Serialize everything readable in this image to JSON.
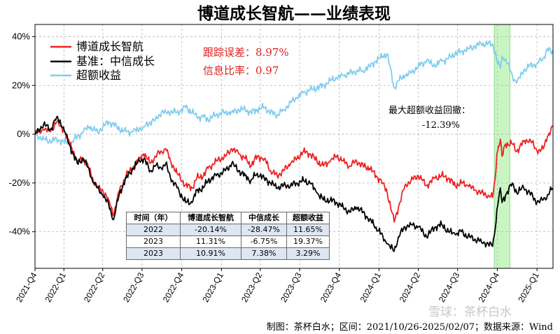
{
  "chart_data": {
    "type": "line",
    "title": "博道成长智航——业绩表现",
    "x_range": [
      "2021-10-26",
      "2025-02-07"
    ],
    "ylim": [
      -55,
      45
    ],
    "y_ticks": [
      "40%",
      "20%",
      "0%",
      "-20%",
      "-40%"
    ],
    "x_ticks": [
      "2021-Q4",
      "2022-Q1",
      "2022-Q2",
      "2022-Q3",
      "2022-Q4",
      "2023-Q1",
      "2023-Q2",
      "2023-Q3",
      "2023-Q4",
      "2024-Q1",
      "2024-Q2",
      "2024-Q3",
      "2024-Q4",
      "2025-Q1"
    ],
    "grid": true,
    "legend_position": "top-left",
    "series": [
      {
        "name": "博道成长智航",
        "color": "#ee2222",
        "points": [
          [
            "2021-10-26",
            0
          ],
          [
            "2021-11-15",
            2
          ],
          [
            "2021-12-01",
            1
          ],
          [
            "2021-12-15",
            5
          ],
          [
            "2021-12-31",
            2
          ],
          [
            "2022-01-10",
            -2
          ],
          [
            "2022-01-20",
            -6
          ],
          [
            "2022-02-01",
            -11
          ],
          [
            "2022-02-15",
            -10
          ],
          [
            "2022-03-01",
            -14
          ],
          [
            "2022-03-10",
            -19
          ],
          [
            "2022-03-20",
            -22
          ],
          [
            "2022-04-01",
            -23
          ],
          [
            "2022-04-15",
            -27
          ],
          [
            "2022-04-26",
            -33
          ],
          [
            "2022-05-10",
            -23
          ],
          [
            "2022-05-25",
            -17
          ],
          [
            "2022-06-10",
            -14
          ],
          [
            "2022-06-25",
            -10
          ],
          [
            "2022-07-05",
            -8
          ],
          [
            "2022-07-20",
            -12
          ],
          [
            "2022-08-01",
            -9
          ],
          [
            "2022-08-15",
            -7
          ],
          [
            "2022-08-25",
            -6
          ],
          [
            "2022-09-05",
            -11
          ],
          [
            "2022-09-20",
            -16
          ],
          [
            "2022-10-10",
            -21
          ],
          [
            "2022-10-25",
            -22
          ],
          [
            "2022-11-05",
            -18
          ],
          [
            "2022-11-20",
            -17
          ],
          [
            "2022-12-01",
            -14
          ],
          [
            "2022-12-20",
            -11
          ],
          [
            "2023-01-10",
            -9
          ],
          [
            "2023-01-25",
            -6
          ],
          [
            "2023-02-10",
            -8
          ],
          [
            "2023-02-25",
            -10
          ],
          [
            "2023-03-10",
            -13
          ],
          [
            "2023-03-25",
            -9
          ],
          [
            "2023-04-10",
            -10
          ],
          [
            "2023-04-25",
            -15
          ],
          [
            "2023-05-10",
            -17
          ],
          [
            "2023-05-25",
            -15
          ],
          [
            "2023-06-10",
            -12
          ],
          [
            "2023-06-25",
            -10
          ],
          [
            "2023-07-10",
            -7
          ],
          [
            "2023-07-25",
            -8
          ],
          [
            "2023-08-10",
            -11
          ],
          [
            "2023-08-25",
            -13
          ],
          [
            "2023-09-10",
            -11
          ],
          [
            "2023-09-25",
            -9
          ],
          [
            "2023-10-10",
            -11
          ],
          [
            "2023-10-25",
            -13
          ],
          [
            "2023-11-10",
            -11
          ],
          [
            "2023-11-25",
            -13
          ],
          [
            "2023-12-10",
            -14
          ],
          [
            "2023-12-25",
            -17
          ],
          [
            "2024-01-10",
            -20
          ],
          [
            "2024-01-20",
            -24
          ],
          [
            "2024-02-05",
            -36
          ],
          [
            "2024-02-15",
            -30
          ],
          [
            "2024-03-01",
            -21
          ],
          [
            "2024-03-15",
            -19
          ],
          [
            "2024-04-01",
            -17
          ],
          [
            "2024-04-20",
            -21
          ],
          [
            "2024-05-10",
            -18
          ],
          [
            "2024-05-25",
            -17
          ],
          [
            "2024-06-10",
            -18
          ],
          [
            "2024-06-25",
            -21
          ],
          [
            "2024-07-10",
            -20
          ],
          [
            "2024-07-25",
            -21
          ],
          [
            "2024-08-10",
            -23
          ],
          [
            "2024-08-25",
            -24
          ],
          [
            "2024-09-10",
            -25
          ],
          [
            "2024-09-20",
            -26
          ],
          [
            "2024-09-26",
            -18
          ],
          [
            "2024-09-30",
            -8
          ],
          [
            "2024-10-08",
            -2
          ],
          [
            "2024-10-12",
            -9
          ],
          [
            "2024-10-20",
            -4
          ],
          [
            "2024-11-05",
            -4
          ],
          [
            "2024-11-15",
            -7
          ],
          [
            "2024-12-01",
            -3
          ],
          [
            "2024-12-15",
            -2
          ],
          [
            "2025-01-01",
            -7
          ],
          [
            "2025-01-15",
            -6
          ],
          [
            "2025-01-25",
            -1
          ],
          [
            "2025-02-07",
            3
          ]
        ]
      },
      {
        "name": "基准：中信成长",
        "color": "#000000",
        "points": [
          [
            "2021-10-26",
            0
          ],
          [
            "2021-11-15",
            4
          ],
          [
            "2021-12-01",
            2
          ],
          [
            "2021-12-15",
            7
          ],
          [
            "2021-12-31",
            3
          ],
          [
            "2022-01-10",
            -3
          ],
          [
            "2022-01-20",
            -7
          ],
          [
            "2022-02-01",
            -12
          ],
          [
            "2022-02-15",
            -10
          ],
          [
            "2022-03-01",
            -15
          ],
          [
            "2022-03-10",
            -20
          ],
          [
            "2022-03-20",
            -22
          ],
          [
            "2022-04-01",
            -25
          ],
          [
            "2022-04-15",
            -29
          ],
          [
            "2022-04-26",
            -35
          ],
          [
            "2022-05-10",
            -24
          ],
          [
            "2022-05-25",
            -18
          ],
          [
            "2022-06-10",
            -14
          ],
          [
            "2022-06-25",
            -11
          ],
          [
            "2022-07-05",
            -10
          ],
          [
            "2022-07-20",
            -15
          ],
          [
            "2022-08-01",
            -13
          ],
          [
            "2022-08-15",
            -14
          ],
          [
            "2022-08-25",
            -12
          ],
          [
            "2022-09-05",
            -18
          ],
          [
            "2022-09-20",
            -22
          ],
          [
            "2022-10-10",
            -28
          ],
          [
            "2022-10-25",
            -28
          ],
          [
            "2022-11-05",
            -23
          ],
          [
            "2022-11-20",
            -22
          ],
          [
            "2022-12-01",
            -19
          ],
          [
            "2022-12-20",
            -17
          ],
          [
            "2023-01-10",
            -15
          ],
          [
            "2023-01-25",
            -12
          ],
          [
            "2023-02-10",
            -15
          ],
          [
            "2023-02-25",
            -17
          ],
          [
            "2023-03-10",
            -19
          ],
          [
            "2023-03-25",
            -16
          ],
          [
            "2023-04-10",
            -18
          ],
          [
            "2023-04-25",
            -20
          ],
          [
            "2023-05-10",
            -22
          ],
          [
            "2023-05-25",
            -21
          ],
          [
            "2023-06-10",
            -21
          ],
          [
            "2023-06-25",
            -20
          ],
          [
            "2023-07-10",
            -19
          ],
          [
            "2023-07-25",
            -20
          ],
          [
            "2023-08-10",
            -24
          ],
          [
            "2023-08-25",
            -27
          ],
          [
            "2023-09-10",
            -27
          ],
          [
            "2023-09-25",
            -28
          ],
          [
            "2023-10-10",
            -30
          ],
          [
            "2023-10-25",
            -32
          ],
          [
            "2023-11-10",
            -30
          ],
          [
            "2023-11-25",
            -32
          ],
          [
            "2023-12-10",
            -35
          ],
          [
            "2023-12-25",
            -38
          ],
          [
            "2024-01-10",
            -42
          ],
          [
            "2024-01-20",
            -45
          ],
          [
            "2024-02-05",
            -48
          ],
          [
            "2024-02-15",
            -42
          ],
          [
            "2024-03-01",
            -38
          ],
          [
            "2024-03-15",
            -37
          ],
          [
            "2024-04-01",
            -38
          ],
          [
            "2024-04-20",
            -42
          ],
          [
            "2024-05-10",
            -38
          ],
          [
            "2024-05-25",
            -37
          ],
          [
            "2024-06-10",
            -40
          ],
          [
            "2024-06-25",
            -41
          ],
          [
            "2024-07-10",
            -40
          ],
          [
            "2024-07-25",
            -42
          ],
          [
            "2024-08-10",
            -43
          ],
          [
            "2024-08-25",
            -44
          ],
          [
            "2024-09-10",
            -45
          ],
          [
            "2024-09-20",
            -46
          ],
          [
            "2024-09-26",
            -39
          ],
          [
            "2024-09-30",
            -31
          ],
          [
            "2024-10-08",
            -22
          ],
          [
            "2024-10-12",
            -28
          ],
          [
            "2024-10-20",
            -25
          ],
          [
            "2024-11-05",
            -20
          ],
          [
            "2024-11-15",
            -24
          ],
          [
            "2024-12-01",
            -22
          ],
          [
            "2024-12-15",
            -24
          ],
          [
            "2025-01-01",
            -28
          ],
          [
            "2025-01-15",
            -27
          ],
          [
            "2025-01-25",
            -25
          ],
          [
            "2025-02-07",
            -22
          ]
        ]
      },
      {
        "name": "超额收益",
        "color": "#7fcdf0",
        "points": [
          [
            "2021-10-26",
            0
          ],
          [
            "2021-11-15",
            -2
          ],
          [
            "2021-12-01",
            -3
          ],
          [
            "2021-12-15",
            -2
          ],
          [
            "2021-12-31",
            -3
          ],
          [
            "2022-01-10",
            -4
          ],
          [
            "2022-01-20",
            -3
          ],
          [
            "2022-02-01",
            -1
          ],
          [
            "2022-02-15",
            1
          ],
          [
            "2022-03-01",
            3
          ],
          [
            "2022-03-10",
            2
          ],
          [
            "2022-03-20",
            1
          ],
          [
            "2022-04-01",
            3
          ],
          [
            "2022-04-15",
            5
          ],
          [
            "2022-04-26",
            4
          ],
          [
            "2022-05-10",
            2
          ],
          [
            "2022-05-25",
            1
          ],
          [
            "2022-06-10",
            1
          ],
          [
            "2022-06-25",
            2
          ],
          [
            "2022-07-05",
            3
          ],
          [
            "2022-07-20",
            5
          ],
          [
            "2022-08-01",
            6
          ],
          [
            "2022-08-15",
            9
          ],
          [
            "2022-08-25",
            9
          ],
          [
            "2022-09-05",
            9
          ],
          [
            "2022-09-20",
            9
          ],
          [
            "2022-10-10",
            11
          ],
          [
            "2022-10-25",
            9
          ],
          [
            "2022-11-05",
            7
          ],
          [
            "2022-11-20",
            7
          ],
          [
            "2022-12-01",
            6
          ],
          [
            "2022-12-20",
            8
          ],
          [
            "2023-01-10",
            9
          ],
          [
            "2023-01-25",
            9
          ],
          [
            "2023-02-10",
            10
          ],
          [
            "2023-02-25",
            10
          ],
          [
            "2023-03-10",
            9
          ],
          [
            "2023-03-25",
            10
          ],
          [
            "2023-04-10",
            11
          ],
          [
            "2023-04-25",
            9
          ],
          [
            "2023-05-10",
            8
          ],
          [
            "2023-05-25",
            10
          ],
          [
            "2023-06-10",
            13
          ],
          [
            "2023-06-25",
            15
          ],
          [
            "2023-07-10",
            17
          ],
          [
            "2023-07-25",
            18
          ],
          [
            "2023-08-10",
            19
          ],
          [
            "2023-08-25",
            20
          ],
          [
            "2023-09-10",
            22
          ],
          [
            "2023-09-25",
            23
          ],
          [
            "2023-10-10",
            24
          ],
          [
            "2023-10-25",
            25
          ],
          [
            "2023-11-10",
            26
          ],
          [
            "2023-11-25",
            26
          ],
          [
            "2023-12-10",
            28
          ],
          [
            "2023-12-25",
            30
          ],
          [
            "2024-01-10",
            32
          ],
          [
            "2024-01-20",
            33
          ],
          [
            "2024-02-05",
            19
          ],
          [
            "2024-02-15",
            22
          ],
          [
            "2024-03-01",
            24
          ],
          [
            "2024-03-15",
            25
          ],
          [
            "2024-04-01",
            28
          ],
          [
            "2024-04-20",
            30
          ],
          [
            "2024-05-10",
            28
          ],
          [
            "2024-05-25",
            30
          ],
          [
            "2024-06-10",
            31
          ],
          [
            "2024-06-25",
            33
          ],
          [
            "2024-07-10",
            34
          ],
          [
            "2024-07-25",
            35
          ],
          [
            "2024-08-10",
            36
          ],
          [
            "2024-08-25",
            37
          ],
          [
            "2024-09-10",
            37
          ],
          [
            "2024-09-20",
            37
          ],
          [
            "2024-09-26",
            34
          ],
          [
            "2024-09-30",
            30
          ],
          [
            "2024-10-08",
            27
          ],
          [
            "2024-10-12",
            32
          ],
          [
            "2024-10-20",
            31
          ],
          [
            "2024-11-05",
            24
          ],
          [
            "2024-11-15",
            21
          ],
          [
            "2024-12-01",
            26
          ],
          [
            "2024-12-15",
            28
          ],
          [
            "2025-01-01",
            29
          ],
          [
            "2025-01-15",
            31
          ],
          [
            "2025-01-25",
            35
          ],
          [
            "2025-02-07",
            33
          ]
        ]
      }
    ],
    "highlight_range": [
      "2024-09-24",
      "2024-10-30"
    ],
    "highlight_color": "#c9f5c2"
  },
  "stats": {
    "tracking_error": "跟踪误差：8.97%",
    "info_ratio": "信息比率：0.97"
  },
  "annotation": {
    "line1": "最大超额收益回撤：",
    "line2": "-12.39%"
  },
  "table": {
    "headers": [
      "时间（年）",
      "博道成长智航",
      "中信成长",
      "超额收益"
    ],
    "rows": [
      [
        "2022",
        "-20.14%",
        "-28.47%",
        "11.65%"
      ],
      [
        "2023",
        "11.31%",
        "-6.75%",
        "19.37%"
      ],
      [
        "2023",
        "10.91%",
        "7.38%",
        "3.29%"
      ]
    ]
  },
  "footer": "制图：茶杯白水；区间：2021/10/26-2025/02/07；数据来源：Wind",
  "watermark": "雪球：茶杯白水"
}
